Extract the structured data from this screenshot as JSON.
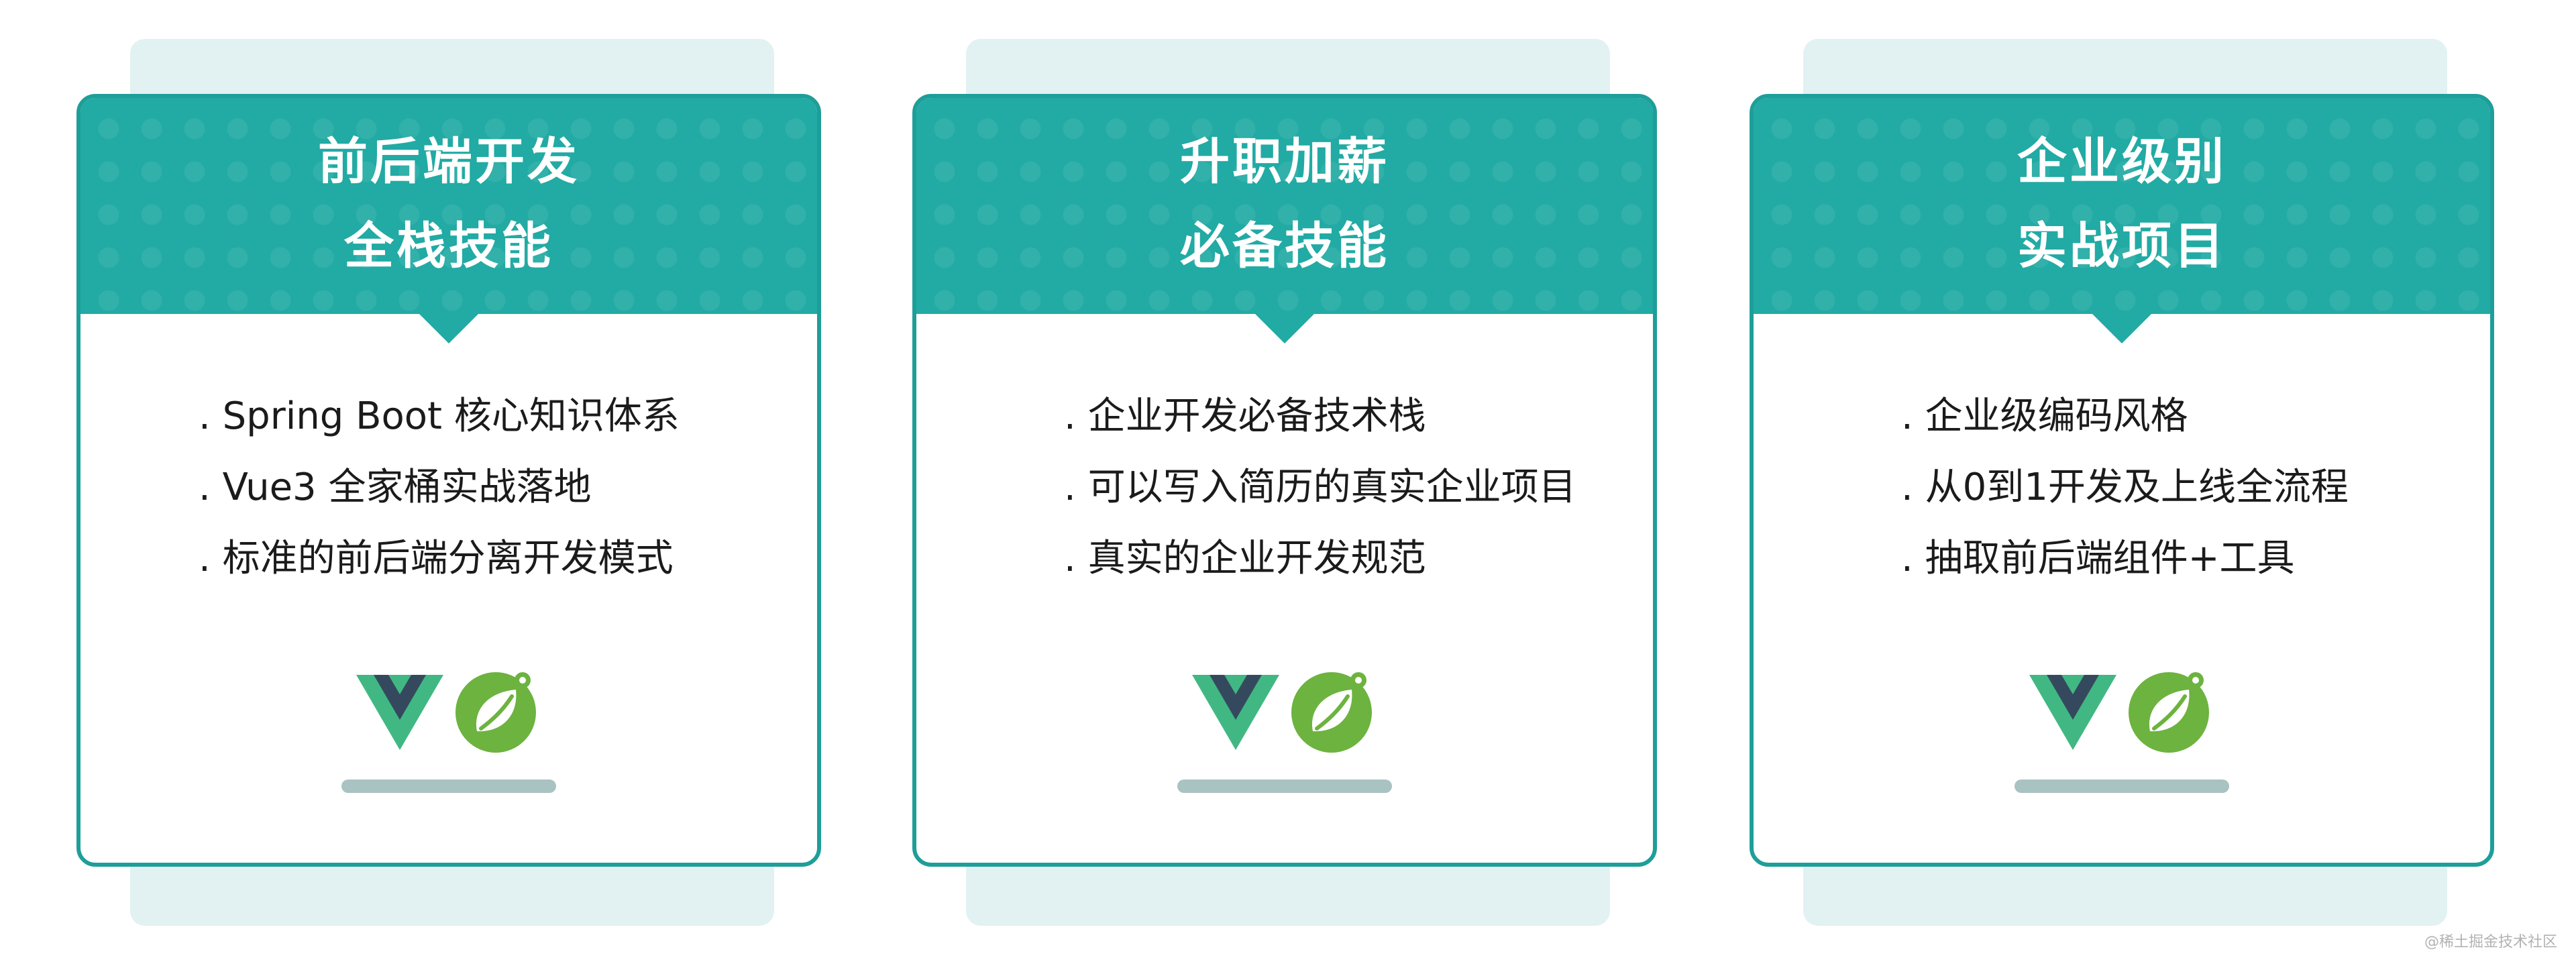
{
  "colors": {
    "accent": "#22aaa4",
    "border": "#1e9e99",
    "backplate": "#e2f1f2",
    "vue_green": "#41b883",
    "vue_dark": "#35495e",
    "spring_green": "#6db33f",
    "bar": "#a9c2c2"
  },
  "cards": [
    {
      "title_line1": "前后端开发",
      "title_line2": "全栈技能",
      "items": [
        ". Spring Boot 核心知识体系",
        ". Vue3 全家桶实战落地",
        ". 标准的前后端分离开发模式"
      ],
      "icons": [
        "vue-logo-icon",
        "spring-logo-icon"
      ]
    },
    {
      "title_line1": "升职加薪",
      "title_line2": "必备技能",
      "items": [
        ". 企业开发必备技术栈",
        ". 可以写入简历的真实企业项目",
        ". 真实的企业开发规范"
      ],
      "icons": [
        "vue-logo-icon",
        "spring-logo-icon"
      ]
    },
    {
      "title_line1": "企业级别",
      "title_line2": "实战项目",
      "items": [
        ". 企业级编码风格",
        ". 从0到1开发及上线全流程",
        ". 抽取前后端组件+工具"
      ],
      "icons": [
        "vue-logo-icon",
        "spring-logo-icon"
      ]
    }
  ],
  "watermark": "@稀土掘金技术社区"
}
